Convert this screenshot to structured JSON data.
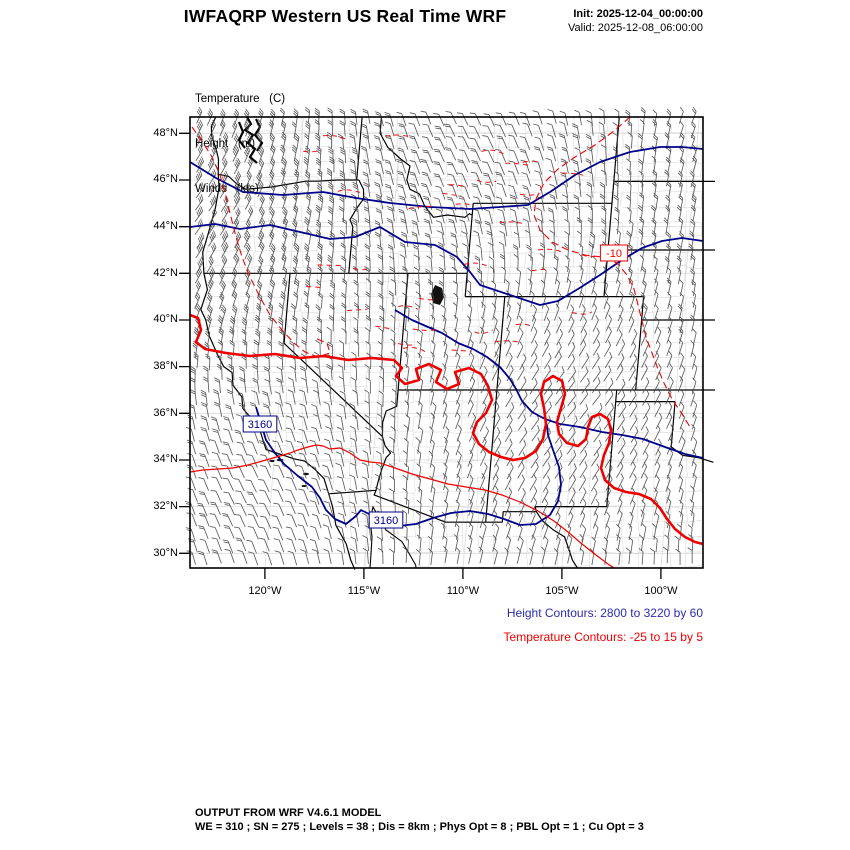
{
  "header": {
    "title": "IWFAQRP Western US Real Time WRF",
    "init": "Init: 2025-12-04_00:00:00",
    "valid": "Valid: 2025-12-08_06:00:00"
  },
  "fields": {
    "temperature": "Temperature   (C)",
    "height": "Height   (m)",
    "winds": "Winds   (kts)"
  },
  "map": {
    "lat_ticks": [
      "48°N",
      "46°N",
      "44°N",
      "42°N",
      "40°N",
      "38°N",
      "36°N",
      "34°N",
      "32°N",
      "30°N"
    ],
    "lat_values": [
      48,
      46,
      44,
      42,
      40,
      38,
      36,
      34,
      32,
      30
    ],
    "lon_ticks": [
      "120°W",
      "115°W",
      "110°W",
      "105°W",
      "100°W"
    ],
    "lon_values": [
      120,
      115,
      110,
      105,
      100
    ],
    "height_contour_labels": [
      "3160",
      "3160"
    ],
    "temperature_contour_labels": [
      "-10"
    ],
    "colors": {
      "height_contour": "#00008b",
      "temperature_contour": "#ee0000",
      "state_border": "#000000",
      "wind_barb": "#454545",
      "county_line": "#b0b0b0",
      "graticule": "#dcdcdc",
      "legend_height_text": "#2b2bb4",
      "legend_temp_text": "#ee0000"
    }
  },
  "contour_info": {
    "height": "Height Contours: 2800 to 3220 by 60",
    "height_min": 2800,
    "height_max": 3220,
    "height_step": 60,
    "temperature": "Temperature Contours: -25 to 15 by 5",
    "temperature_min": -25,
    "temperature_max": 15,
    "temperature_step": 5
  },
  "footer": {
    "line1": "OUTPUT FROM WRF V4.6.1 MODEL",
    "line2": "WE = 310 ; SN = 275 ; Levels = 38 ; Dis = 8km ; Phys Opt = 8 ; PBL Opt = 1 ; Cu Opt = 3"
  }
}
